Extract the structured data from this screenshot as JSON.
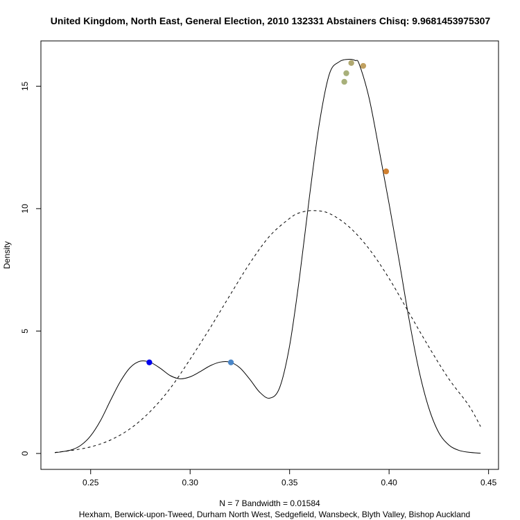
{
  "chart_data": {
    "type": "line",
    "title": "United Kingdom, North East, General Election, 2010 132331 Abstainers Chisq: 9.9681453975307",
    "xlabel_line1": "N = 7   Bandwidth = 0.01584",
    "xlabel_line2": "Hexham, Berwick-upon-Tweed, Durham North West, Sedgefield, Wansbeck, Blyth Valley, Bishop Auckland",
    "ylabel": "Density",
    "xlim": [
      0.225,
      0.455
    ],
    "ylim": [
      -0.65,
      16.85
    ],
    "x_ticks": [
      0.25,
      0.3,
      0.35,
      0.4,
      0.45
    ],
    "x_tick_labels": [
      "0.25",
      "0.30",
      "0.35",
      "0.40",
      "0.45"
    ],
    "y_ticks": [
      0,
      5,
      10,
      15
    ],
    "y_tick_labels": [
      "0",
      "5",
      "10",
      "15"
    ],
    "grid": false,
    "series": [
      {
        "style": "solid",
        "x": [
          0.232,
          0.24,
          0.245,
          0.25,
          0.255,
          0.26,
          0.265,
          0.27,
          0.275,
          0.28,
          0.285,
          0.29,
          0.295,
          0.3,
          0.305,
          0.31,
          0.315,
          0.32,
          0.325,
          0.33,
          0.335,
          0.34,
          0.345,
          0.35,
          0.355,
          0.36,
          0.365,
          0.37,
          0.375,
          0.38,
          0.383,
          0.385,
          0.39,
          0.395,
          0.4,
          0.405,
          0.41,
          0.415,
          0.42,
          0.425,
          0.43,
          0.435,
          0.44,
          0.446
        ],
        "y": [
          0.03,
          0.14,
          0.33,
          0.72,
          1.35,
          2.17,
          2.95,
          3.52,
          3.77,
          3.72,
          3.48,
          3.18,
          3.05,
          3.13,
          3.34,
          3.58,
          3.73,
          3.73,
          3.5,
          3.03,
          2.5,
          2.26,
          2.69,
          4.4,
          7.2,
          10.5,
          13.5,
          15.5,
          16.0,
          16.1,
          16.05,
          15.9,
          14.5,
          12.4,
          10.2,
          7.9,
          5.5,
          3.4,
          1.85,
          0.85,
          0.35,
          0.13,
          0.05,
          0.01
        ]
      },
      {
        "style": "dashed",
        "x": [
          0.232,
          0.24,
          0.25,
          0.26,
          0.27,
          0.28,
          0.29,
          0.3,
          0.31,
          0.32,
          0.33,
          0.34,
          0.35,
          0.355,
          0.362,
          0.37,
          0.38,
          0.39,
          0.4,
          0.41,
          0.42,
          0.43,
          0.44,
          0.446
        ],
        "y": [
          0.04,
          0.12,
          0.27,
          0.55,
          1.02,
          1.72,
          2.66,
          3.85,
          5.12,
          6.46,
          7.77,
          8.88,
          9.6,
          9.83,
          9.92,
          9.8,
          9.25,
          8.35,
          7.15,
          5.75,
          4.35,
          3.05,
          1.97,
          1.1
        ]
      }
    ],
    "points": [
      {
        "x": 0.2795,
        "y": 3.72,
        "color": "#0000ee"
      },
      {
        "x": 0.3205,
        "y": 3.72,
        "color": "#4a86c8"
      },
      {
        "x": 0.3775,
        "y": 15.18,
        "color": "#a8b07a"
      },
      {
        "x": 0.3785,
        "y": 15.53,
        "color": "#a8b07a"
      },
      {
        "x": 0.381,
        "y": 15.95,
        "color": "#b0a870"
      },
      {
        "x": 0.387,
        "y": 15.83,
        "color": "#c0a060"
      },
      {
        "x": 0.3985,
        "y": 11.52,
        "color": "#d08030"
      }
    ]
  }
}
